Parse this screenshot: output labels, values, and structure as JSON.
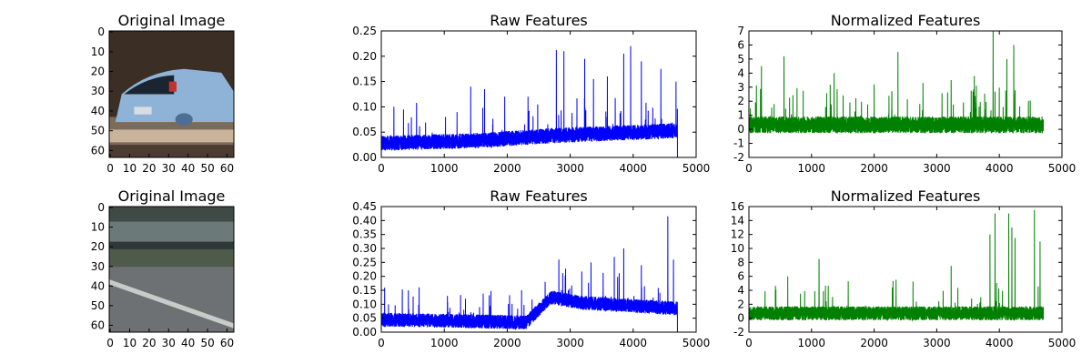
{
  "chart_data": [
    {
      "id": "img-top",
      "type": "image",
      "title": "Original Image",
      "xticks": [
        0,
        10,
        20,
        30,
        40,
        50,
        60
      ],
      "yticks": [
        0,
        10,
        20,
        30,
        40,
        50,
        60
      ],
      "xlim": [
        0,
        64
      ],
      "ylim": [
        64,
        0
      ],
      "scene": "car",
      "palette": {
        "sky": "#3b2e25",
        "car": "#8fb3d6",
        "car_dark": "#4d6f93",
        "window": "#1b2431",
        "tail_light": "#c0342d",
        "road": "#7d6b5a",
        "road_light": "#c9b39a",
        "road_dark": "#4b3b31"
      }
    },
    {
      "id": "raw-top",
      "type": "line",
      "title": "Raw Features",
      "xlim": [
        0,
        5000
      ],
      "ylim": [
        0,
        0.25
      ],
      "xticks": [
        0,
        1000,
        2000,
        3000,
        4000,
        5000
      ],
      "yticks": [
        0.0,
        0.05,
        0.1,
        0.15,
        0.2,
        0.25
      ],
      "ytick_decimals": 2,
      "n_points": 4704,
      "base_level": [
        [
          0,
          0.025
        ],
        [
          1500,
          0.03
        ],
        [
          2700,
          0.04
        ],
        [
          4704,
          0.05
        ]
      ],
      "spread": 0.03,
      "peaks": [
        [
          200,
          0.1
        ],
        [
          560,
          0.108
        ],
        [
          1020,
          0.08
        ],
        [
          1420,
          0.14
        ],
        [
          1640,
          0.135
        ],
        [
          1960,
          0.12
        ],
        [
          2330,
          0.12
        ],
        [
          2780,
          0.212
        ],
        [
          2900,
          0.21
        ],
        [
          3230,
          0.195
        ],
        [
          3370,
          0.155
        ],
        [
          3590,
          0.16
        ],
        [
          3850,
          0.205
        ],
        [
          3960,
          0.22
        ],
        [
          4130,
          0.19
        ],
        [
          4440,
          0.175
        ],
        [
          4680,
          0.15
        ]
      ],
      "series": [
        {
          "color": "#0000ff"
        }
      ]
    },
    {
      "id": "norm-top",
      "type": "line",
      "title": "Normalized Features",
      "xlim": [
        0,
        5000
      ],
      "ylim": [
        -2,
        7
      ],
      "xticks": [
        0,
        1000,
        2000,
        3000,
        4000,
        5000
      ],
      "yticks": [
        -2,
        -1,
        0,
        1,
        2,
        3,
        4,
        5,
        6,
        7
      ],
      "ytick_decimals": 0,
      "n_points": 4704,
      "base_level": [
        [
          0,
          0.2
        ],
        [
          4704,
          0.2
        ]
      ],
      "spread": 1.2,
      "peaks": [
        [
          200,
          4.5
        ],
        [
          560,
          5.2
        ],
        [
          1360,
          4.0
        ],
        [
          2000,
          3.2
        ],
        [
          2380,
          5.5
        ],
        [
          2780,
          3.3
        ],
        [
          3230,
          3.5
        ],
        [
          3600,
          3.8
        ],
        [
          3900,
          7.0
        ],
        [
          4120,
          5.0
        ],
        [
          4230,
          6.0
        ]
      ],
      "series": [
        {
          "color": "#008000"
        }
      ]
    },
    {
      "id": "img-bottom",
      "type": "image",
      "title": "Original Image",
      "xticks": [
        0,
        10,
        20,
        30,
        40,
        50,
        60
      ],
      "yticks": [
        0,
        10,
        20,
        30,
        40,
        50,
        60
      ],
      "xlim": [
        0,
        64
      ],
      "ylim": [
        64,
        0
      ],
      "scene": "road",
      "palette": {
        "top": "#3f4a47",
        "rail": "#6b7a78",
        "rail_dark": "#2f3836",
        "grass": "#4e5a4a",
        "road": "#6e7173",
        "line": "#c8ccc8"
      }
    },
    {
      "id": "raw-bottom",
      "type": "line",
      "title": "Raw Features",
      "xlim": [
        0,
        5000
      ],
      "ylim": [
        0,
        0.45
      ],
      "xticks": [
        0,
        1000,
        2000,
        3000,
        4000,
        5000
      ],
      "yticks": [
        0.0,
        0.05,
        0.1,
        0.15,
        0.2,
        0.25,
        0.3,
        0.35,
        0.4,
        0.45
      ],
      "ytick_decimals": 2,
      "n_points": 4704,
      "base_level": [
        [
          0,
          0.04
        ],
        [
          2300,
          0.03
        ],
        [
          2700,
          0.12
        ],
        [
          3200,
          0.1
        ],
        [
          4704,
          0.08
        ]
      ],
      "spread": 0.05,
      "peaks": [
        [
          430,
          0.15
        ],
        [
          1050,
          0.13
        ],
        [
          1560,
          0.09
        ],
        [
          2820,
          0.26
        ],
        [
          3330,
          0.25
        ],
        [
          3700,
          0.27
        ],
        [
          3850,
          0.3
        ],
        [
          4130,
          0.24
        ],
        [
          4550,
          0.415
        ],
        [
          4640,
          0.26
        ]
      ],
      "series": [
        {
          "color": "#0000ff"
        }
      ]
    },
    {
      "id": "norm-bottom",
      "type": "line",
      "title": "Normalized Features",
      "xlim": [
        0,
        5000
      ],
      "ylim": [
        -2,
        16
      ],
      "xticks": [
        0,
        1000,
        2000,
        3000,
        4000,
        5000
      ],
      "yticks": [
        -2,
        0,
        2,
        4,
        6,
        8,
        10,
        12,
        14,
        16
      ],
      "ytick_decimals": 0,
      "n_points": 4704,
      "base_level": [
        [
          0,
          0.5
        ],
        [
          4704,
          0.5
        ]
      ],
      "spread": 2.0,
      "peaks": [
        [
          1120,
          8.5
        ],
        [
          620,
          6.0
        ],
        [
          2350,
          5.5
        ],
        [
          3230,
          7.5
        ],
        [
          3850,
          12.0
        ],
        [
          3930,
          15.0
        ],
        [
          4150,
          15.0
        ],
        [
          4200,
          13.0
        ],
        [
          4250,
          11.5
        ],
        [
          4560,
          15.5
        ],
        [
          4650,
          11.0
        ]
      ],
      "series": [
        {
          "color": "#008000"
        }
      ]
    }
  ]
}
